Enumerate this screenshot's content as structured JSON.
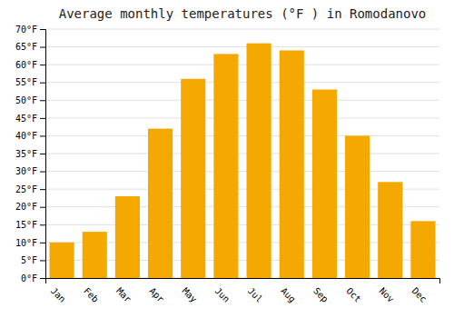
{
  "chart_data": {
    "type": "bar",
    "title": "Average monthly temperatures (°F ) in Romodanovo",
    "categories": [
      "Jan",
      "Feb",
      "Mar",
      "Apr",
      "May",
      "Jun",
      "Jul",
      "Aug",
      "Sep",
      "Oct",
      "Nov",
      "Dec"
    ],
    "values": [
      10,
      13,
      23,
      42,
      56,
      63,
      66,
      64,
      53,
      40,
      27,
      16
    ],
    "color": "#F5A800",
    "ylim": [
      0,
      70
    ],
    "yticks": [
      {
        "value": 0,
        "label": "0°F"
      },
      {
        "value": 5,
        "label": "5°F"
      },
      {
        "value": 10,
        "label": "10°F"
      },
      {
        "value": 15,
        "label": "15°F"
      },
      {
        "value": 20,
        "label": "20°F"
      },
      {
        "value": 25,
        "label": "25°F"
      },
      {
        "value": 30,
        "label": "30°F"
      },
      {
        "value": 35,
        "label": "35°F"
      },
      {
        "value": 40,
        "label": "40°F"
      },
      {
        "value": 45,
        "label": "45°F"
      },
      {
        "value": 50,
        "label": "50°F"
      },
      {
        "value": 55,
        "label": "55°F"
      },
      {
        "value": 60,
        "label": "60°F"
      },
      {
        "value": 65,
        "label": "65°F"
      },
      {
        "value": 70,
        "label": "70°F"
      }
    ],
    "grid": true
  }
}
